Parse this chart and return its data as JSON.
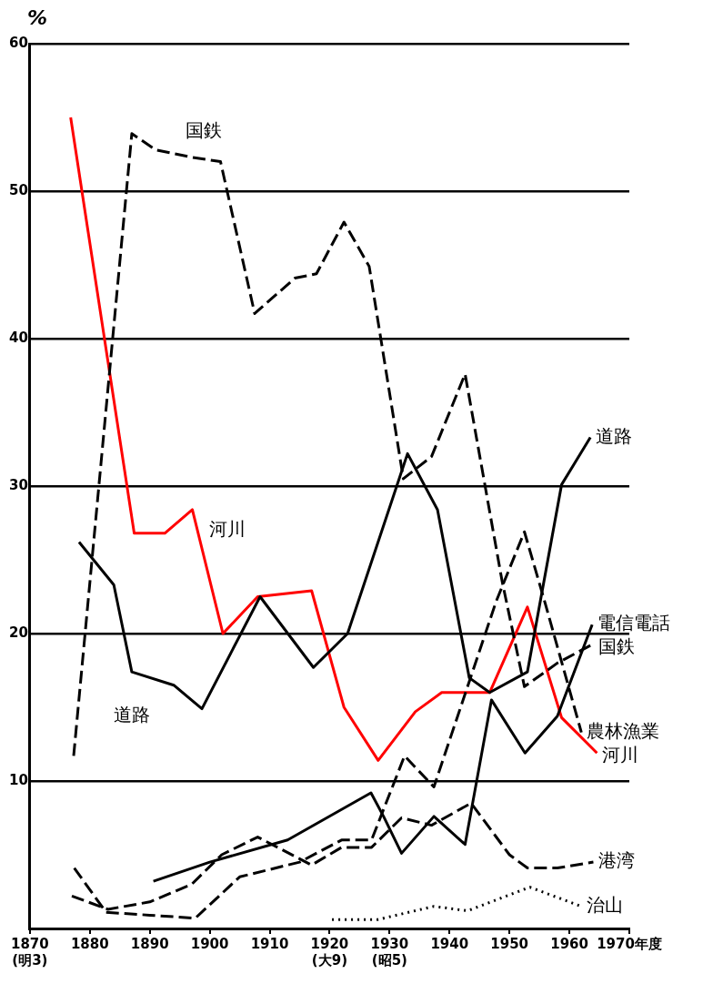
{
  "chart_data": {
    "type": "line",
    "ylabel": "%",
    "xlim": [
      1870,
      1970
    ],
    "ylim": [
      0,
      60
    ],
    "xticks": [
      {
        "value": 1870,
        "label": "1870\n(明3)"
      },
      1880,
      1890,
      1900,
      1910,
      {
        "value": 1920,
        "label": "1920\n(大9)"
      },
      {
        "value": 1930,
        "label": "1930\n(昭5)"
      },
      1940,
      1950,
      1960,
      {
        "value": 1970,
        "label": "1970年度"
      }
    ],
    "yticks": [
      {
        "value": 0,
        "label": null
      },
      10,
      20,
      30,
      40,
      50,
      60
    ],
    "grid": "y",
    "legend": false,
    "marker": "none",
    "annotations": [
      "国鉄",
      "河川",
      "道路"
    ],
    "series": [
      {
        "name": "道路",
        "color": "#000000",
        "line_style": "solid",
        "x": [
          1878.2,
          1884,
          1887,
          1894,
          1898.7,
          1908.4,
          1917.3,
          1923,
          1933,
          1938,
          1943.3,
          1946.7,
          1953,
          1958.7,
          1963.5
        ],
        "values": [
          26.2,
          23.3,
          17.4,
          16.5,
          14.9,
          22.5,
          17.7,
          20,
          32.2,
          28.4,
          17,
          16,
          17.4,
          30.1,
          33.3
        ]
      },
      {
        "name": "電信電話",
        "color": "#000000",
        "line_style": "solid",
        "x": [
          1890.6,
          1900,
          1913,
          1926.9,
          1929,
          1932,
          1937.4,
          1942.6,
          1947,
          1952.6,
          1958,
          1963.8
        ],
        "values": [
          3.2,
          4.5,
          6,
          9.2,
          7.6,
          5.1,
          7.6,
          5.7,
          15.5,
          11.9,
          14.4,
          20.6
        ]
      },
      {
        "name": "国鉄",
        "color": "#000000",
        "line_style": "dashed",
        "x": [
          1877.3,
          1887,
          1891,
          1897,
          1901.8,
          1907.5,
          1914.2,
          1917.8,
          1922.4,
          1926.6,
          1932.3,
          1937,
          1942.6,
          1948.8,
          1952.5,
          1958,
          1964
        ],
        "values": [
          11.7,
          53.9,
          52.8,
          52.3,
          52,
          41.7,
          44.1,
          44.4,
          47.9,
          44.9,
          30.5,
          32,
          37.6,
          23.5,
          16.4,
          18,
          19.3
        ]
      },
      {
        "name": "農林漁業",
        "color": "#000000",
        "line_style": "dashed",
        "x": [
          1877.4,
          1882.7,
          1890,
          1897.6,
          1905,
          1915,
          1922,
          1927,
          1932.5,
          1937.4,
          1947.8,
          1952.5,
          1956,
          1962
        ],
        "values": [
          4.1,
          1.1,
          0.9,
          0.7,
          3.5,
          4.5,
          6,
          6,
          11.7,
          9.6,
          22.2,
          26.9,
          22,
          13.3
        ]
      },
      {
        "name": "河川",
        "color": "#ff0000",
        "line_style": "solid",
        "x": [
          1876.8,
          1887.4,
          1892.5,
          1897.1,
          1902.2,
          1908,
          1917,
          1922.4,
          1928.1,
          1934.3,
          1938.7,
          1946.7,
          1953,
          1958.7,
          1964.6
        ],
        "values": [
          55,
          26.8,
          26.8,
          28.4,
          20,
          22.5,
          22.9,
          15,
          11.4,
          14.7,
          16,
          16,
          21.8,
          14.3,
          11.9
        ]
      },
      {
        "name": "港湾",
        "color": "#000000",
        "line_style": "dashed",
        "x": [
          1877,
          1883,
          1890,
          1897,
          1902,
          1908,
          1917,
          1922,
          1927,
          1932,
          1937,
          1943.6,
          1950,
          1953,
          1958,
          1964
        ],
        "values": [
          2.2,
          1.3,
          1.8,
          3,
          5,
          6.2,
          4.3,
          5.5,
          5.5,
          7.5,
          7,
          8.5,
          5,
          4.1,
          4.1,
          4.5
        ]
      },
      {
        "name": "治山",
        "color": "#000000",
        "line_style": "dotted",
        "x": [
          1920.4,
          1928,
          1937.4,
          1943,
          1953.4,
          1962
        ],
        "values": [
          0.6,
          0.6,
          1.5,
          1.2,
          2.8,
          1.5
        ]
      }
    ]
  }
}
